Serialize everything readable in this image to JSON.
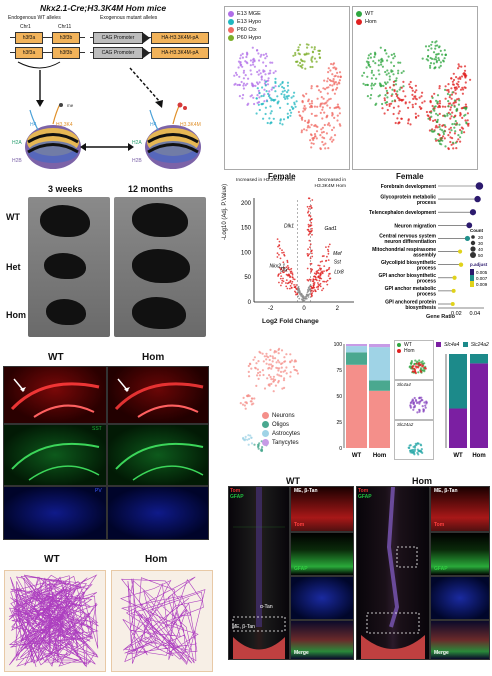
{
  "title": "Nkx2.1-Cre;H3.3K4M Hom mice",
  "alleles": {
    "endogenous_header": "Endogenous WT alleles",
    "exogenous_header": "Exogenous mutant alleles",
    "chr1": "Chr1",
    "chr11": "Chr11",
    "gene_a": "h3f3a",
    "gene_b": "h3f3b",
    "promoter": "CAG Promoter",
    "cassette": "HA-H3.3K4M-pA"
  },
  "nucleosome": {
    "h4": "H4",
    "h3k4": "H3.3K4",
    "h3k4m": "H3.3K4M",
    "h2a": "H2A",
    "h2b": "H2B",
    "me": "me"
  },
  "ages": {
    "left": "3 weeks",
    "right": "12 months"
  },
  "genotypes": {
    "wt": "WT",
    "het": "Het",
    "hom": "Hom"
  },
  "histology": {
    "wt": "WT",
    "hom": "Hom",
    "marker_green": "SST",
    "marker_blue": "PV",
    "colors": {
      "red": "#d81b1b",
      "green": "#1fae3a",
      "blue": "#1c2fd6"
    }
  },
  "tracks": {
    "wt": "WT",
    "hom": "Hom"
  },
  "umap_legend1": [
    {
      "label": "E13 MGE",
      "color": "#b06ee8"
    },
    {
      "label": "E13 Hypo",
      "color": "#20b7c0"
    },
    {
      "label": "P60 Ctx",
      "color": "#f06a63"
    },
    {
      "label": "P60 Hypo",
      "color": "#7cae2a"
    }
  ],
  "umap_legend2": [
    {
      "label": "WT",
      "color": "#2fa640"
    },
    {
      "label": "Hom",
      "color": "#e02020"
    }
  ],
  "volcano": {
    "title": "Female",
    "ylabel": "-Log10 (Adj. P.Value)",
    "xlabel": "Log2 Fold Change",
    "ann_left": "Increased in H3.3K4M Hom",
    "ann_right": "Decreased in H3.3K4M Hom",
    "genes": [
      "Dlk1",
      "Gad1",
      "Mef",
      "Nkx2.1",
      "Dlx",
      "Sst",
      "Ltx8"
    ],
    "x_ticks": [
      "-2",
      "0",
      "2"
    ],
    "y_ticks": [
      "0",
      "50",
      "100",
      "150",
      "200"
    ]
  },
  "chart_data": {
    "type": "scatter",
    "title": "Female",
    "xlabel": "Gene Ratio",
    "ylabel": "",
    "xlim": [
      0,
      0.05
    ],
    "x_ticks": [
      "0.02",
      "0.04"
    ],
    "terms": [
      "Forebrain development",
      "Glycoprotein metabolic process",
      "Telencephalon development",
      "Neuron migration",
      "Central nervous system neuron differentiation",
      "Mitochondrial respirasome assembly",
      "Glycolipid biosynthetic process",
      "GPI anchor biosynthetic process",
      "GPI anchor metabolic process",
      "GPI anchored protein biosynthesis"
    ],
    "gene_ratio": [
      0.045,
      0.043,
      0.038,
      0.034,
      0.032,
      0.024,
      0.025,
      0.018,
      0.017,
      0.016
    ],
    "count": [
      50,
      40,
      38,
      34,
      28,
      20,
      22,
      20,
      18,
      18
    ],
    "p_adjust": [
      0.001,
      0.001,
      0.002,
      0.002,
      0.006,
      0.007,
      0.008,
      0.009,
      0.009,
      0.009
    ],
    "size_legend_title": "Count",
    "size_legend": [
      "20",
      "30",
      "40",
      "50"
    ],
    "color_legend_title": "p.adjust",
    "color_legend": [
      "0.005",
      "0.007",
      "0.009"
    ]
  },
  "celltype": {
    "legend": [
      {
        "label": "Neurons",
        "color": "#f48f8a"
      },
      {
        "label": "Oligos",
        "color": "#4aa88f"
      },
      {
        "label": "Astrocytes",
        "color": "#9fd3e6"
      },
      {
        "label": "Tanycytes",
        "color": "#c79be6"
      }
    ],
    "bar_groups": [
      "WT",
      "Hom"
    ],
    "y_ticks": [
      "0",
      "25",
      "50",
      "75",
      "100"
    ],
    "mini_legend": [
      "WT",
      "Hom"
    ],
    "gene_a": "Slc4a4",
    "gene_b": "Slc24a2",
    "right_title_a": "Slc4a4",
    "right_title_b": "Slc24a2",
    "right_groups": [
      "WT",
      "Hom"
    ]
  },
  "tanycyte": {
    "wt": "WT",
    "hom": "Hom",
    "gfap": "GFAP",
    "me_btan": "ME, β-Tan",
    "alpha_tan": "α-Tan",
    "tom": "Tom",
    "merge": "Merge"
  }
}
